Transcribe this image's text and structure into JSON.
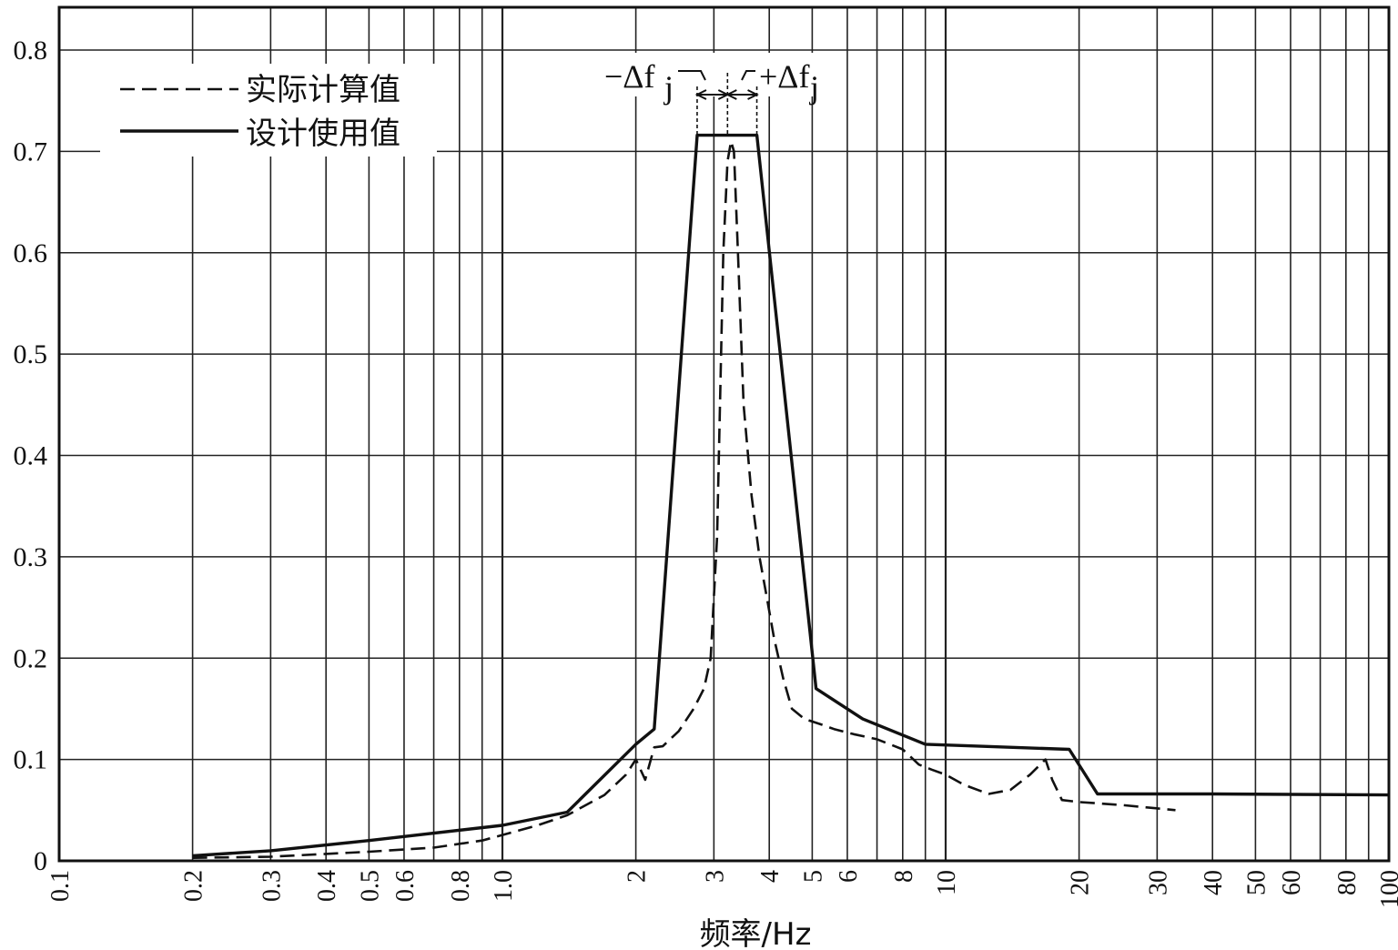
{
  "chart_data": {
    "type": "line",
    "xscale": "log",
    "xlim": [
      0.1,
      100
    ],
    "ylim": [
      0,
      0.8
    ],
    "xlabel": "频率/Hz",
    "ylabel": "",
    "grid": true,
    "legend_position": "top-left",
    "x_tick_labels": [
      "0.1",
      "0.2",
      "0.3",
      "0.4",
      "0.5",
      "0.6",
      "0.8",
      "1.0",
      "2",
      "3",
      "4",
      "5",
      "6",
      "8",
      "10",
      "20",
      "30",
      "40",
      "50",
      "60",
      "80",
      "100"
    ],
    "y_tick_labels": [
      "0",
      "0.1",
      "0.2",
      "0.3",
      "0.4",
      "0.5",
      "0.6",
      "0.7",
      "0.8"
    ],
    "annotations": {
      "minus": "−Δf",
      "plus": "+Δf",
      "sub": "j"
    },
    "series": [
      {
        "name": "实际计算值",
        "style": "dashed",
        "x": [
          0.2,
          0.3,
          0.5,
          0.7,
          0.9,
          1.2,
          1.4,
          1.7,
          1.9,
          2.0,
          2.1,
          2.2,
          2.3,
          2.5,
          2.7,
          2.85,
          2.95,
          3.05,
          3.15,
          3.22,
          3.28,
          3.33,
          3.4,
          3.5,
          3.65,
          3.8,
          3.95,
          4.1,
          4.3,
          4.5,
          4.8,
          5.2,
          5.6,
          6.2,
          7.0,
          8.0,
          8.7,
          9.3,
          10.0,
          11.0,
          12.5,
          14.0,
          15.5,
          16.8,
          17.4,
          18.3,
          20.0,
          25.0,
          33.0
        ],
        "values": [
          0.003,
          0.004,
          0.009,
          0.013,
          0.02,
          0.035,
          0.045,
          0.065,
          0.085,
          0.1,
          0.08,
          0.112,
          0.113,
          0.128,
          0.15,
          0.17,
          0.2,
          0.32,
          0.6,
          0.69,
          0.71,
          0.7,
          0.6,
          0.45,
          0.36,
          0.3,
          0.26,
          0.22,
          0.18,
          0.15,
          0.14,
          0.135,
          0.13,
          0.125,
          0.12,
          0.11,
          0.095,
          0.09,
          0.085,
          0.075,
          0.066,
          0.07,
          0.085,
          0.1,
          0.08,
          0.06,
          0.058,
          0.055,
          0.05
        ]
      },
      {
        "name": "设计使用值",
        "style": "solid",
        "x": [
          0.2,
          0.3,
          0.5,
          1.0,
          1.4,
          2.0,
          2.2,
          2.75,
          3.75,
          5.1,
          6.5,
          9.0,
          12.0,
          19.0,
          22.0,
          40.0,
          100.0
        ],
        "values": [
          0.005,
          0.01,
          0.02,
          0.035,
          0.048,
          0.115,
          0.13,
          0.716,
          0.716,
          0.17,
          0.14,
          0.115,
          0.113,
          0.11,
          0.066,
          0.066,
          0.065
        ]
      }
    ]
  }
}
